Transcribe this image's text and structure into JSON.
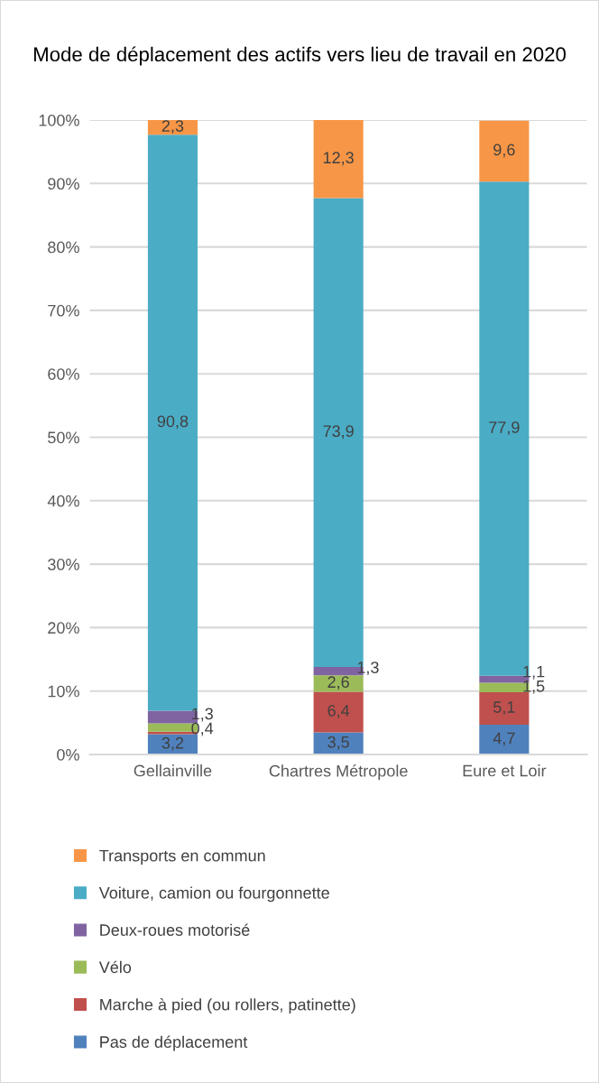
{
  "chart_data": {
    "type": "bar",
    "stacked": true,
    "title": "Mode de déplacement des actifs vers lieu de travail en 2020",
    "categories": [
      "Gellainville",
      "Chartres Métropole",
      "Eure et Loir"
    ],
    "series": [
      {
        "name": "Pas de déplacement",
        "color": "#4f81bd",
        "values": [
          3.2,
          3.5,
          4.7
        ],
        "value_labels": [
          "3,2",
          "3,5",
          "4,7"
        ]
      },
      {
        "name": "Marche à pied (ou rollers, patinette)",
        "color": "#c0504d",
        "values": [
          0.4,
          6.4,
          5.1
        ],
        "value_labels": [
          "0,4",
          "6,4",
          "5,1"
        ]
      },
      {
        "name": "Vélo",
        "color": "#9bbb59",
        "values": [
          1.3,
          2.6,
          1.5
        ],
        "value_labels": [
          "1,3",
          "2,6",
          "1,5"
        ]
      },
      {
        "name": "Deux-roues motorisé",
        "color": "#8064a2",
        "values": [
          2.0,
          1.3,
          1.1
        ],
        "value_labels": [
          null,
          "1,3",
          "1,1"
        ]
      },
      {
        "name": "Voiture, camion ou fourgonnette",
        "color": "#4bacc6",
        "values": [
          90.8,
          73.9,
          77.9
        ],
        "value_labels": [
          "90,8",
          "73,9",
          "77,9"
        ]
      },
      {
        "name": "Transports en commun",
        "color": "#f79646",
        "values": [
          2.3,
          12.3,
          9.6
        ],
        "value_labels": [
          "2,3",
          "12,3",
          "9,6"
        ]
      }
    ],
    "ylim": [
      0,
      100
    ],
    "yticks": [
      {
        "value": 0,
        "label": "0%"
      },
      {
        "value": 10,
        "label": "10%"
      },
      {
        "value": 20,
        "label": "20%"
      },
      {
        "value": 30,
        "label": "30%"
      },
      {
        "value": 40,
        "label": "40%"
      },
      {
        "value": 50,
        "label": "50%"
      },
      {
        "value": 60,
        "label": "60%"
      },
      {
        "value": 70,
        "label": "70%"
      },
      {
        "value": 80,
        "label": "80%"
      },
      {
        "value": 90,
        "label": "90%"
      },
      {
        "value": 100,
        "label": "100%"
      }
    ],
    "grid": "y",
    "legend": "bottom"
  }
}
